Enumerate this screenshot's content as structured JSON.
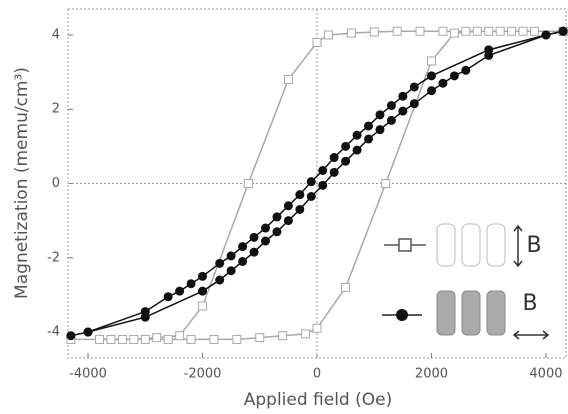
{
  "chart_data": {
    "type": "scatter-line",
    "x_label": "Applied field (Oe)",
    "y_label": "Magnetization (memu/cm³)",
    "xlim": [
      -4350,
      4350
    ],
    "ylim": [
      -4.7,
      4.7
    ],
    "xticks": [
      -4000,
      -2000,
      0,
      2000,
      4000
    ],
    "yticks": [
      -4,
      -2,
      0,
      2,
      4
    ],
    "zero_lines": true,
    "annotations": [
      "B",
      "B"
    ],
    "series": [
      {
        "marker": "square",
        "color": "#a8a8a8",
        "x": [
          4300,
          3800,
          3400,
          3000,
          2600,
          2200,
          1800,
          1400,
          1000,
          600,
          200,
          0,
          -500,
          -1200,
          -2000,
          -2400,
          -2800,
          -3200,
          -3600,
          -4300
        ],
        "values": [
          4.1,
          4.1,
          4.1,
          4.1,
          4.1,
          4.1,
          4.1,
          4.1,
          4.08,
          4.05,
          4.0,
          3.8,
          2.8,
          0,
          -3.3,
          -4.1,
          -4.15,
          -4.2,
          -4.2,
          -4.2
        ]
      },
      {
        "marker": "square",
        "color": "#a8a8a8",
        "x": [
          -3800,
          -3400,
          -3000,
          -2600,
          -2200,
          -1800,
          -1400,
          -1000,
          -600,
          -200,
          0,
          500,
          1200,
          2000,
          2400,
          2800,
          3200,
          3600,
          4300
        ],
        "values": [
          -4.2,
          -4.2,
          -4.2,
          -4.2,
          -4.2,
          -4.2,
          -4.2,
          -4.15,
          -4.1,
          -4.05,
          -3.9,
          -2.8,
          0,
          3.3,
          4.05,
          4.1,
          4.1,
          4.1,
          4.1
        ]
      },
      {
        "marker": "circle",
        "color": "#111111",
        "x": [
          4300,
          4000,
          3000,
          2000,
          1700,
          1500,
          1300,
          1100,
          900,
          700,
          500,
          300,
          100,
          -100,
          -300,
          -500,
          -700,
          -900,
          -1100,
          -1300,
          -1500,
          -1700,
          -2000,
          -2200,
          -2400,
          -2600,
          -3000,
          -4000,
          -4300
        ],
        "values": [
          4.1,
          4.0,
          3.6,
          2.9,
          2.6,
          2.35,
          2.1,
          1.85,
          1.55,
          1.3,
          1.0,
          0.7,
          0.35,
          0.05,
          -0.3,
          -0.6,
          -0.9,
          -1.2,
          -1.45,
          -1.7,
          -1.95,
          -2.15,
          -2.5,
          -2.7,
          -2.9,
          -3.05,
          -3.45,
          -4.0,
          -4.1
        ]
      },
      {
        "marker": "circle",
        "color": "#111111",
        "x": [
          -4000,
          -3000,
          -2000,
          -1700,
          -1500,
          -1300,
          -1100,
          -900,
          -700,
          -500,
          -300,
          -100,
          100,
          300,
          500,
          700,
          900,
          1100,
          1300,
          1500,
          1700,
          2000,
          2200,
          2400,
          2600,
          3000,
          4000,
          4300
        ],
        "values": [
          -4.0,
          -3.6,
          -2.9,
          -2.6,
          -2.35,
          -2.1,
          -1.85,
          -1.55,
          -1.3,
          -1.0,
          -0.7,
          -0.35,
          -0.05,
          0.3,
          0.6,
          0.9,
          1.2,
          1.45,
          1.7,
          1.95,
          2.15,
          2.5,
          2.7,
          2.9,
          3.05,
          3.45,
          4.0,
          4.1
        ]
      }
    ]
  }
}
